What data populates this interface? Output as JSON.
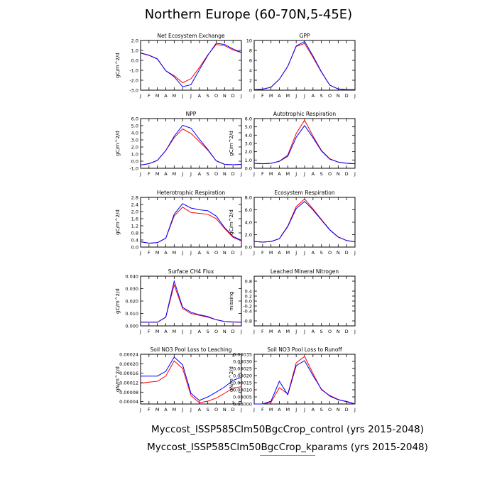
{
  "figure_title": "Northern Europe (60-70N,5-45E)",
  "legend": [
    {
      "label": "Myccost_ISSP585Clm50BgcCrop_control (yrs 2015-2048)",
      "color": "#ff0000"
    },
    {
      "label": "Myccost_ISSP585Clm50BgcCrop_kparams (yrs 2015-2048)",
      "color": "#0000ff"
    }
  ],
  "months": [
    "J",
    "F",
    "M",
    "A",
    "M",
    "J",
    "J",
    "A",
    "S",
    "O",
    "N",
    "D",
    "J"
  ],
  "chart_data": [
    {
      "type": "line",
      "title": "Net Ecosystem Exchange",
      "ylabel": "gC/m^2/d",
      "ylim": [
        -3.0,
        2.0
      ],
      "yticks": [
        "2.0",
        "1.0",
        "0.0",
        "-1.0",
        "-2.0",
        "-3.0"
      ],
      "ytick_values": [
        2,
        1,
        0,
        -1,
        -2,
        -3
      ],
      "series": [
        {
          "values": [
            0.72,
            0.5,
            0.12,
            -1.05,
            -1.55,
            -2.25,
            -1.85,
            -0.72,
            0.55,
            1.6,
            1.48,
            1.05,
            0.78
          ],
          "color": "#ff0000"
        },
        {
          "values": [
            0.75,
            0.52,
            0.15,
            -1.05,
            -1.65,
            -2.65,
            -2.45,
            -0.95,
            0.5,
            1.72,
            1.6,
            1.15,
            0.8
          ],
          "color": "#0000ff"
        }
      ]
    },
    {
      "type": "line",
      "title": "GPP",
      "ylabel": "",
      "ylim": [
        0,
        10
      ],
      "yticks": [
        "10",
        "8",
        "6",
        "4",
        "2",
        "0"
      ],
      "ytick_values": [
        10,
        8,
        6,
        4,
        2,
        0
      ],
      "series": [
        {
          "values": [
            0.1,
            0.2,
            0.6,
            2.2,
            4.8,
            8.8,
            9.4,
            6.6,
            3.6,
            1.0,
            0.25,
            0.1,
            0.1
          ],
          "color": "#ff0000"
        },
        {
          "values": [
            0.1,
            0.2,
            0.6,
            2.2,
            4.8,
            8.9,
            9.8,
            6.9,
            3.7,
            1.0,
            0.25,
            0.1,
            0.1
          ],
          "color": "#0000ff"
        }
      ]
    },
    {
      "type": "line",
      "title": "NPP",
      "ylabel": "gC/m^2/d",
      "ylim": [
        -1.0,
        6.0
      ],
      "yticks": [
        "6.0",
        "5.0",
        "4.0",
        "3.0",
        "2.0",
        "1.0",
        "0.0",
        "-1.0"
      ],
      "ytick_values": [
        6,
        5,
        4,
        3,
        2,
        1,
        0,
        -1
      ],
      "series": [
        {
          "values": [
            -0.55,
            -0.35,
            0.1,
            1.5,
            3.3,
            4.55,
            3.9,
            2.75,
            1.55,
            0.05,
            -0.45,
            -0.5,
            -0.45
          ],
          "color": "#ff0000"
        },
        {
          "values": [
            -0.55,
            -0.35,
            0.1,
            1.5,
            3.5,
            5.05,
            4.65,
            3.1,
            1.65,
            0.05,
            -0.45,
            -0.5,
            -0.45
          ],
          "color": "#0000ff"
        }
      ]
    },
    {
      "type": "line",
      "title": "Autotrophic Respiration",
      "ylabel": "gC/m^2/d",
      "ylim": [
        0,
        6
      ],
      "yticks": [
        "6.0",
        "5.0",
        "4.0",
        "3.0",
        "2.0",
        "1.0",
        "0.0"
      ],
      "ytick_values": [
        6,
        5,
        4,
        3,
        2,
        1,
        0
      ],
      "series": [
        {
          "values": [
            0.6,
            0.55,
            0.6,
            0.85,
            1.6,
            4.2,
            5.8,
            3.9,
            2.15,
            1.15,
            0.75,
            0.6,
            0.55
          ],
          "color": "#ff0000"
        },
        {
          "values": [
            0.6,
            0.55,
            0.6,
            0.85,
            1.45,
            3.75,
            5.15,
            3.7,
            2.1,
            1.1,
            0.75,
            0.6,
            0.55
          ],
          "color": "#0000ff"
        }
      ]
    },
    {
      "type": "line",
      "title": "Heterotrophic Respiration",
      "ylabel": "gC/m^2/d",
      "ylim": [
        0,
        2.8
      ],
      "yticks": [
        "2.8",
        "2.4",
        "2.0",
        "1.6",
        "1.2",
        "0.8",
        "0.4",
        "0.0"
      ],
      "ytick_values": [
        2.8,
        2.4,
        2.0,
        1.6,
        1.2,
        0.8,
        0.4,
        0
      ],
      "series": [
        {
          "values": [
            0.3,
            0.22,
            0.25,
            0.5,
            1.75,
            2.25,
            1.95,
            1.9,
            1.85,
            1.6,
            1.05,
            0.55,
            0.35
          ],
          "color": "#ff0000"
        },
        {
          "values": [
            0.3,
            0.22,
            0.25,
            0.5,
            1.85,
            2.45,
            2.2,
            2.1,
            2.05,
            1.75,
            1.1,
            0.6,
            0.38
          ],
          "color": "#0000ff"
        }
      ]
    },
    {
      "type": "line",
      "title": "Ecosystem Respiration",
      "ylabel": "gC/m^2/d",
      "ylim": [
        0,
        8
      ],
      "yticks": [
        "8.0",
        "6.0",
        "4.0",
        "2.0",
        "0.0"
      ],
      "ytick_values": [
        8,
        6,
        4,
        2,
        0
      ],
      "series": [
        {
          "values": [
            0.9,
            0.8,
            0.9,
            1.35,
            3.4,
            6.5,
            7.75,
            6.15,
            4.45,
            2.8,
            1.65,
            1.05,
            0.85
          ],
          "color": "#ff0000"
        },
        {
          "values": [
            0.9,
            0.8,
            0.9,
            1.35,
            3.3,
            6.2,
            7.35,
            6.0,
            4.35,
            2.75,
            1.6,
            1.05,
            0.85
          ],
          "color": "#0000ff"
        }
      ]
    },
    {
      "type": "line",
      "title": "Surface CH4 Flux",
      "ylabel": "gC/m^2/d",
      "ylim": [
        0,
        0.04
      ],
      "yticks": [
        "0.040",
        "0.030",
        "0.020",
        "0.010",
        "0.000"
      ],
      "ytick_values": [
        0.04,
        0.03,
        0.02,
        0.01,
        0
      ],
      "series": [
        {
          "values": [
            0.003,
            0.003,
            0.003,
            0.007,
            0.033,
            0.014,
            0.01,
            0.0085,
            0.007,
            0.005,
            0.0035,
            0.003,
            0.003
          ],
          "color": "#ff0000"
        },
        {
          "values": [
            0.003,
            0.003,
            0.003,
            0.007,
            0.036,
            0.015,
            0.011,
            0.009,
            0.0075,
            0.005,
            0.0035,
            0.0032,
            0.003
          ],
          "color": "#0000ff"
        }
      ]
    },
    {
      "type": "line",
      "title": "Leached Mineral Nitrogen",
      "ylabel": "missing",
      "ylim": [
        -1,
        1
      ],
      "yticks": [
        "0.8",
        "0.4",
        "0.2",
        "0.0",
        "-0.2",
        "-0.4",
        "-0.8"
      ],
      "ytick_values": [
        0.8,
        0.4,
        0.2,
        0,
        -0.2,
        -0.4,
        -0.8
      ],
      "series": []
    },
    {
      "type": "line",
      "title": "Soil NO3 Pool Loss to Leaching",
      "ylabel": "gN/m^2/d",
      "ylim": [
        3e-05,
        0.00024
      ],
      "yticks": [
        "0.00024",
        "0.00020",
        "0.00016",
        "0.00012",
        "0.00008",
        "0.00004"
      ],
      "ytick_values": [
        0.00024,
        0.0002,
        0.00016,
        0.00012,
        8e-05,
        4e-05
      ],
      "series": [
        {
          "values": [
            0.000118,
            0.000122,
            0.000126,
            0.000148,
            0.000212,
            0.00018,
            6.6e-05,
            3.5e-05,
            4.2e-05,
            5.5e-05,
            7.5e-05,
            9.8e-05,
            0.000103
          ],
          "color": "#ff0000"
        },
        {
          "values": [
            0.000148,
            0.000148,
            0.000148,
            0.000168,
            0.000228,
            0.000196,
            7.5e-05,
            4.5e-05,
            6e-05,
            8e-05,
            0.000102,
            0.00013,
            0.000143
          ],
          "color": "#0000ff"
        }
      ]
    },
    {
      "type": "line",
      "title": "Soil NO3 Pool Loss to Runoff",
      "ylabel": "gN/m^2/d",
      "ylim": [
        0,
        0.00035
      ],
      "yticks": [
        "0.00035",
        "0.00030",
        "0.00025",
        "0.00020",
        "0.00015",
        "0.00010",
        "0.00005",
        "0.00000"
      ],
      "ytick_values": [
        0.00035,
        0.0003,
        0.00025,
        0.0002,
        0.00015,
        0.0001,
        5e-05,
        0
      ],
      "series": [
        {
          "values": [
            0.0,
            0.0,
            1.2e-05,
            0.000115,
            7e-05,
            0.00029,
            0.000335,
            0.000215,
            0.0001,
            6e-05,
            3.2e-05,
            1.5e-05,
            0.0
          ],
          "color": "#ff0000"
        },
        {
          "values": [
            0.0,
            0.0,
            2e-05,
            0.00016,
            6.5e-05,
            0.00027,
            0.000305,
            0.0002,
            0.000105,
            5.5e-05,
            3e-05,
            1.8e-05,
            0.0
          ],
          "color": "#0000ff"
        }
      ]
    }
  ]
}
